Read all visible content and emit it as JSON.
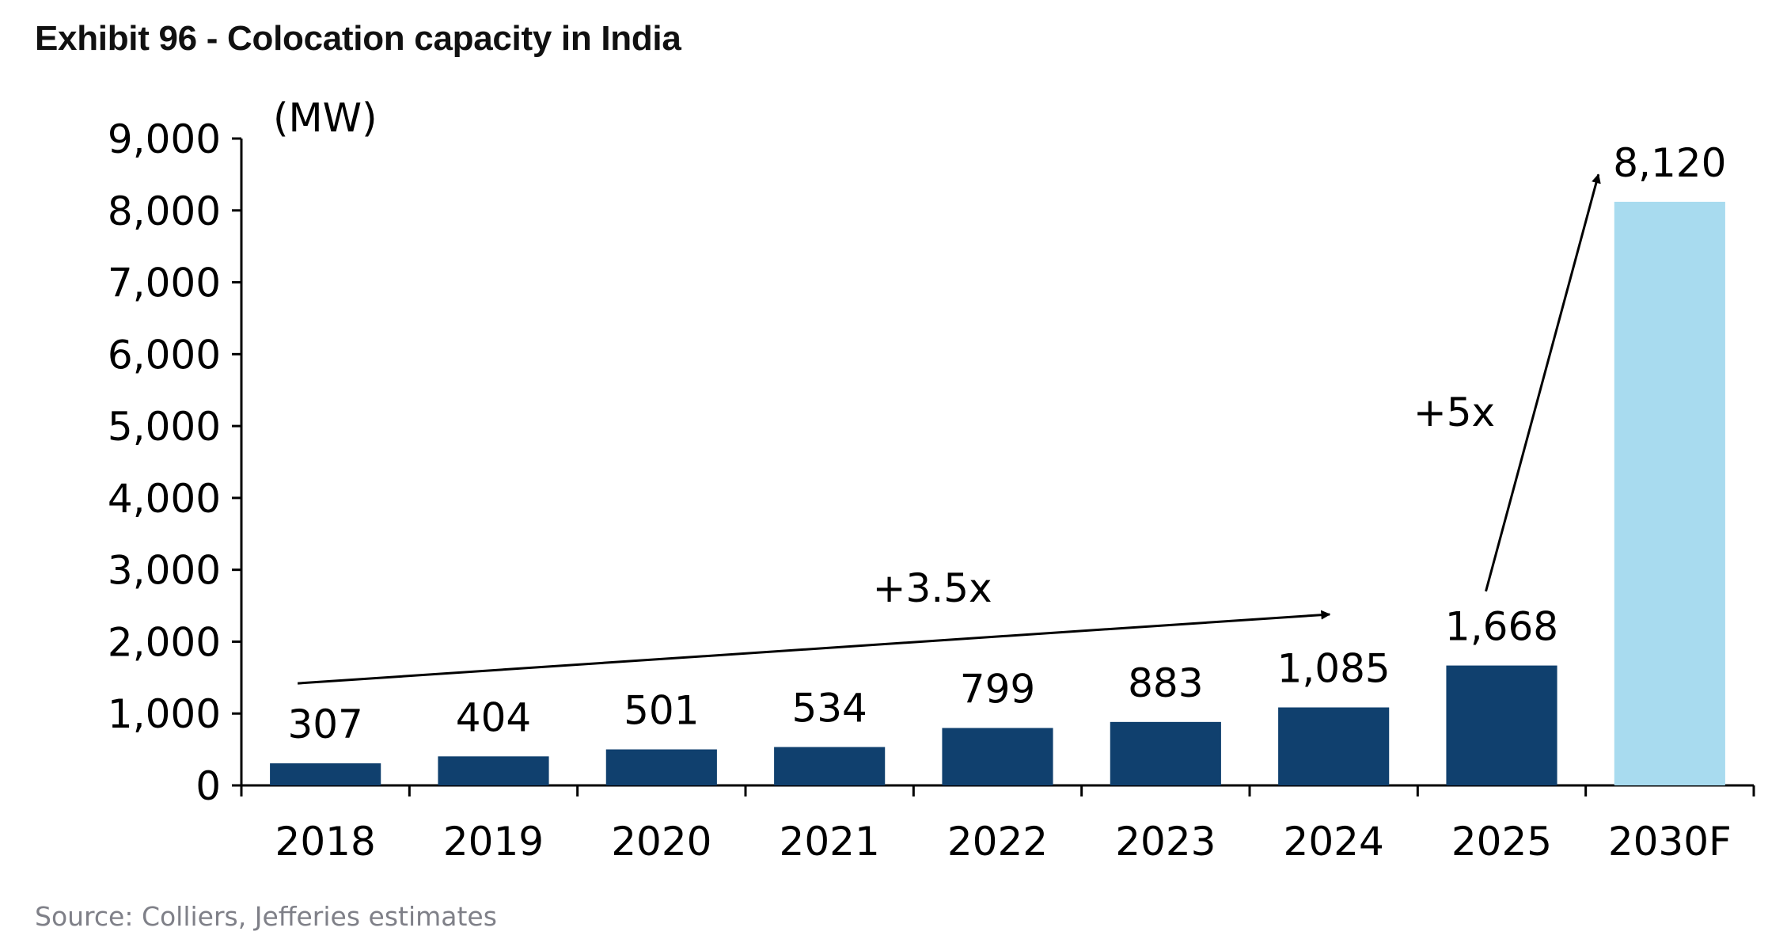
{
  "title": "Exhibit 96 - Colocation capacity in India",
  "source": "Source: Colliers, Jefferies estimates",
  "chart_data": {
    "type": "bar",
    "title": "Exhibit 96 - Colocation capacity in India",
    "unit_label": "(MW)",
    "xlabel": "",
    "ylabel": "",
    "categories": [
      "2018",
      "2019",
      "2020",
      "2021",
      "2022",
      "2023",
      "2024",
      "2025",
      "2030F"
    ],
    "values": [
      307,
      404,
      501,
      534,
      799,
      883,
      1085,
      1668,
      8120
    ],
    "data_labels": [
      "307",
      "404",
      "501",
      "534",
      "799",
      "883",
      "1,085",
      "1,668",
      "8,120"
    ],
    "ylim": [
      0,
      9000
    ],
    "yticks": [
      0,
      1000,
      2000,
      3000,
      4000,
      5000,
      6000,
      7000,
      8000,
      9000
    ],
    "ytick_labels": [
      "0",
      "1,000",
      "2,000",
      "3,000",
      "4,000",
      "5,000",
      "6,000",
      "7,000",
      "8,000",
      "9,000"
    ],
    "grid": false,
    "legend": "none",
    "colors": {
      "actual": "#10406e",
      "forecast": "#a8dbef"
    },
    "annotations": [
      {
        "text": "+3.5x",
        "from_category": "2018",
        "to_category": "2024"
      },
      {
        "text": "+5x",
        "from_category": "2025",
        "to_category": "2030F"
      }
    ]
  }
}
